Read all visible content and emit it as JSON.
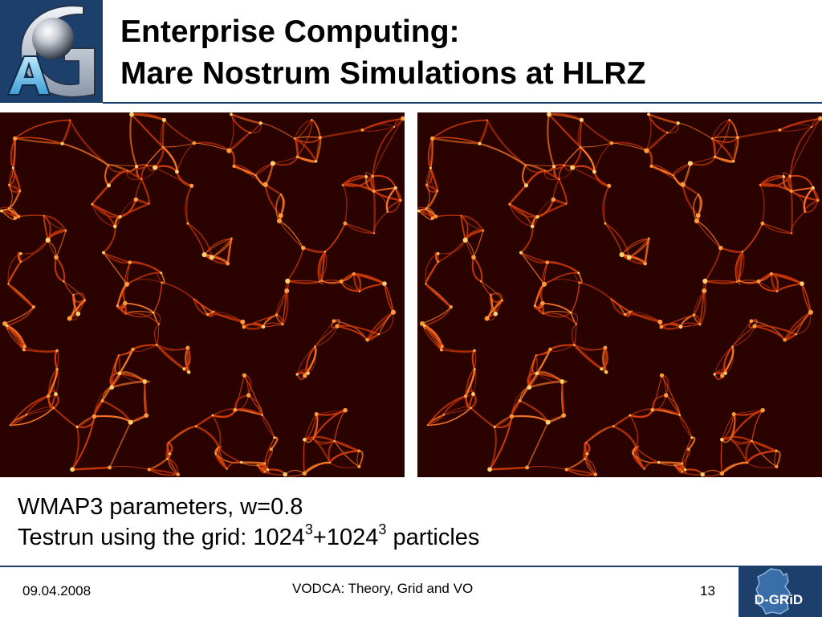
{
  "header": {
    "logo_label": "AG",
    "title_line1": "Enterprise Computing:",
    "title_line2": "Mare Nostrum Simulations at HLRZ"
  },
  "images": {
    "left": "cosmic-web-simulation-image",
    "right": "cosmic-web-simulation-image"
  },
  "caption": {
    "line1": "WMAP3 parameters, w=0.8",
    "line2_prefix": "Testrun using the grid: 1024",
    "exp1": "3",
    "plus": "+1024",
    "exp2": "3",
    "line2_suffix": " particles"
  },
  "footer": {
    "date": "09.04.2008",
    "center": "VODCA: Theory, Grid and VO",
    "page": "13",
    "logo_label": "D-GRiD"
  },
  "colors": {
    "brand_blue": "#1d3f6b",
    "sim_dark": "#2a0200",
    "sim_red": "#d23a08",
    "sim_bright": "#ffd070"
  }
}
